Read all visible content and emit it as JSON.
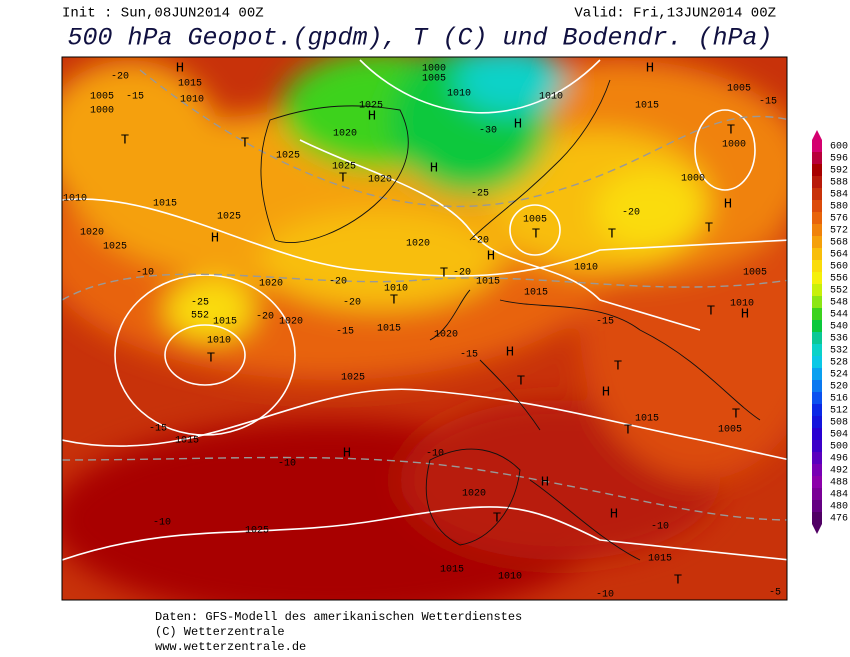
{
  "header": {
    "init": "Init : Sun,08JUN2014 00Z",
    "valid": "Valid: Fri,13JUN2014 00Z",
    "title": "500 hPa Geopot.(gpdm), T (C) und Bodendr. (hPa)"
  },
  "colorbar": {
    "labels": [
      "600",
      "596",
      "592",
      "588",
      "584",
      "580",
      "576",
      "572",
      "568",
      "564",
      "560",
      "556",
      "552",
      "548",
      "544",
      "540",
      "536",
      "532",
      "528",
      "524",
      "520",
      "516",
      "512",
      "508",
      "504",
      "500",
      "496",
      "492",
      "488",
      "484",
      "480",
      "476"
    ],
    "colors": [
      "#d4006f",
      "#b8003a",
      "#a80000",
      "#b81a0a",
      "#c8320a",
      "#dc4b0a",
      "#e8640a",
      "#f0820a",
      "#f5a00a",
      "#f8be0a",
      "#fadc0a",
      "#f5f00a",
      "#c8f00a",
      "#8ce614",
      "#3cd21e",
      "#0ac83c",
      "#0ac896",
      "#0ad2c8",
      "#0ac8e6",
      "#0aa0f0",
      "#0a78f0",
      "#0a50f0",
      "#0a28e6",
      "#1414dc",
      "#2800d2",
      "#3c00c8",
      "#5a00be",
      "#7800b4",
      "#8c00aa",
      "#7a0096",
      "#640082",
      "#500064"
    ]
  },
  "map": {
    "labels": [
      "H",
      "1015",
      "1010",
      "1005",
      "1000",
      "-20",
      "-15",
      "T",
      "1010",
      "1015",
      "1020",
      "1025",
      "-10",
      "1025",
      "H",
      "T",
      "1025",
      "1020",
      "H",
      "1025",
      "1000",
      "1005",
      "1010",
      "-30",
      "H",
      "1010",
      "H",
      "1015",
      "1005",
      "-15",
      "T",
      "1000",
      "T",
      "1025",
      "1020",
      "H",
      "-25",
      "1005",
      "T",
      "T",
      "H",
      "T",
      "1000",
      "-20",
      "-20",
      "1020",
      "T",
      "H",
      "-20",
      "1010",
      "T",
      "-20",
      "-15",
      "1015",
      "1020",
      "-20",
      "-25",
      "552",
      "1015",
      "1010",
      "T",
      "1020",
      "-20",
      "1015",
      "1015",
      "1010",
      "1005",
      "1010",
      "T",
      "H",
      "-15",
      "1020",
      "-15",
      "H",
      "T",
      "T",
      "H",
      "T",
      "1005",
      "1015",
      "T",
      "-15",
      "1015",
      "1025",
      "H",
      "-10",
      "-10",
      "1020",
      "H",
      "T",
      "H",
      "-10",
      "-10",
      "1025",
      "1015",
      "T",
      "1015",
      "1010",
      "-10",
      "-5"
    ]
  },
  "footer": {
    "lines": [
      "Daten: GFS-Modell des amerikanischen Wetterdienstes",
      "(C) Wetterzentrale",
      "www.wetterzentrale.de"
    ]
  }
}
